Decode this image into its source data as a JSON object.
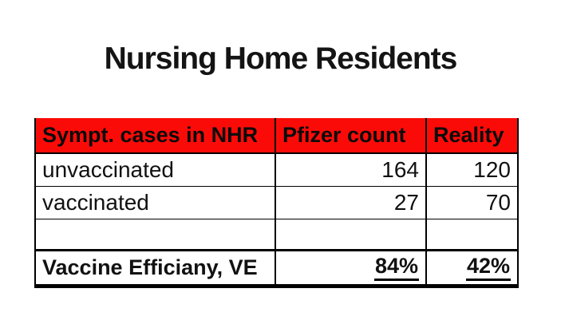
{
  "title": "Nursing Home Residents",
  "colors": {
    "header_bg": "#fb0b08",
    "text": "#111111",
    "border": "#000000",
    "background": "#ffffff"
  },
  "chart_data": {
    "type": "table",
    "title": "Nursing Home Residents",
    "columns": [
      "Sympt. cases in NHR",
      "Pfizer count",
      "Reality"
    ],
    "rows": [
      [
        "unvaccinated",
        164,
        120
      ],
      [
        "vaccinated",
        27,
        70
      ],
      [
        "",
        "",
        ""
      ]
    ],
    "summary_row": {
      "label": "Vaccine Efficiany, VE",
      "pfizer": "84%",
      "reality": "42%"
    },
    "layout": {
      "header_fill": "red",
      "value_alignment": "right",
      "summary_values_underlined": true,
      "grid": true
    }
  }
}
